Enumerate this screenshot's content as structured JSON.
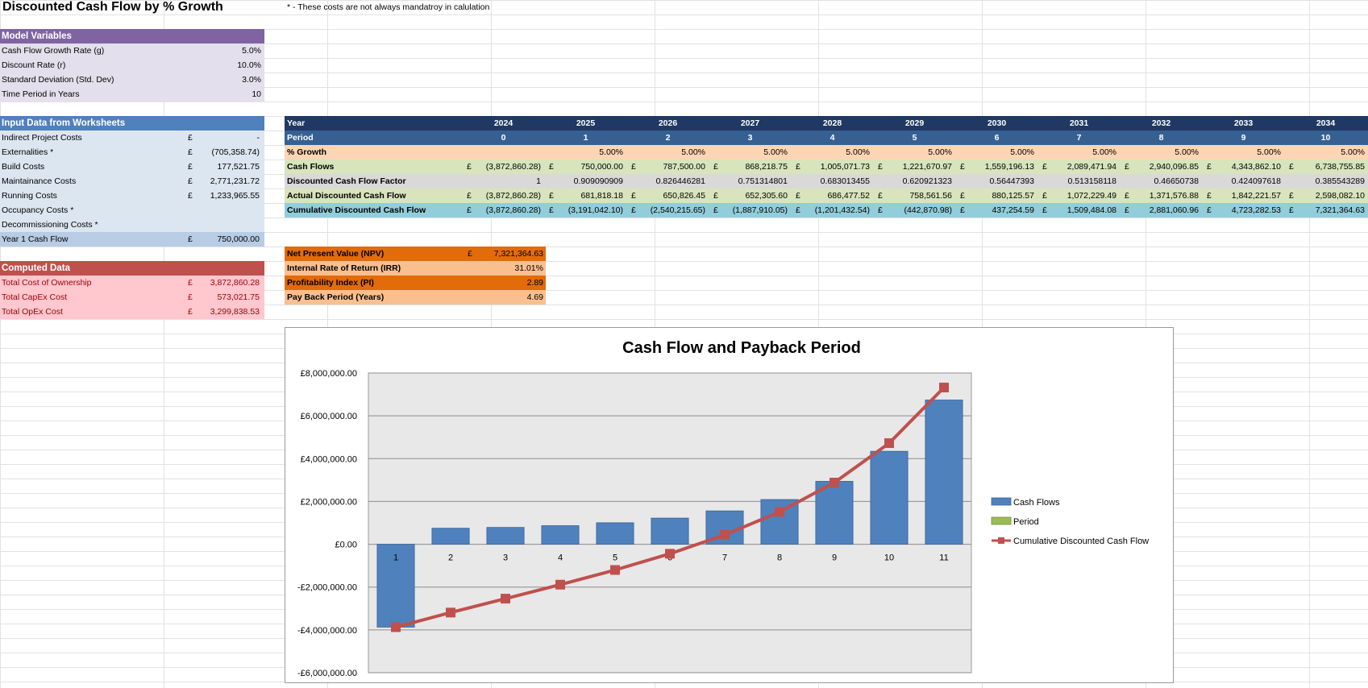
{
  "sheet": {
    "title": "Discounted Cash Flow by % Growth",
    "note": "* - These costs are not always mandatroy in calulation"
  },
  "model_variables": {
    "header": "Model Variables",
    "rows": [
      {
        "label": "Cash Flow Growth Rate (g)",
        "value": "5.0%"
      },
      {
        "label": "Discount Rate (r)",
        "value": "10.0%"
      },
      {
        "label": "Standard Deviation (Std. Dev)",
        "value": "3.0%"
      },
      {
        "label": "Time Period in Years",
        "value": "10"
      }
    ]
  },
  "input_data": {
    "header": "Input Data from Worksheets",
    "rows": [
      {
        "label": "Indirect Project Costs",
        "cur": "£",
        "value": "-"
      },
      {
        "label": "Externalities *",
        "cur": "£",
        "value": "(705,358.74)"
      },
      {
        "label": "Build Costs",
        "cur": "£",
        "value": "177,521.75"
      },
      {
        "label": "Maintainance Costs",
        "cur": "£",
        "value": "2,771,231.72"
      },
      {
        "label": "Running Costs",
        "cur": "£",
        "value": "1,233,965.55"
      },
      {
        "label": "Occupancy Costs *",
        "cur": "",
        "value": ""
      },
      {
        "label": "Decommissioning Costs *",
        "cur": "",
        "value": ""
      }
    ],
    "year1": {
      "label": "Year 1 Cash Flow",
      "cur": "£",
      "value": "750,000.00"
    }
  },
  "computed": {
    "header": "Computed Data",
    "rows": [
      {
        "label": "Total Cost of Ownership",
        "cur": "£",
        "value": "3,872,860.28"
      },
      {
        "label": "Total CapEx Cost",
        "cur": "£",
        "value": "573,021.75"
      },
      {
        "label": "Total OpEx Cost",
        "cur": "£",
        "value": "3,299,838.53"
      }
    ]
  },
  "dcf_table": {
    "year_label": "Year",
    "years": [
      "2024",
      "2025",
      "2026",
      "2027",
      "2028",
      "2029",
      "2030",
      "2031",
      "2032",
      "2033",
      "2034"
    ],
    "period_label": "Period",
    "periods": [
      "0",
      "1",
      "2",
      "3",
      "4",
      "5",
      "6",
      "7",
      "8",
      "9",
      "10"
    ],
    "growth_label": "% Growth",
    "growth": [
      "",
      "5.00%",
      "5.00%",
      "5.00%",
      "5.00%",
      "5.00%",
      "5.00%",
      "5.00%",
      "5.00%",
      "5.00%",
      "5.00%"
    ],
    "currency": "£",
    "cashflow_label": "Cash Flows",
    "cashflows": [
      "(3,872,860.28)",
      "750,000.00",
      "787,500.00",
      "868,218.75",
      "1,005,071.73",
      "1,221,670.97",
      "1,559,196.13",
      "2,089,471.94",
      "2,940,096.85",
      "4,343,862.10",
      "6,738,755.85"
    ],
    "factor_label": "Discounted Cash Flow Factor",
    "factors": [
      "1",
      "0.909090909",
      "0.826446281",
      "0.751314801",
      "0.683013455",
      "0.620921323",
      "0.56447393",
      "0.513158118",
      "0.46650738",
      "0.424097618",
      "0.385543289"
    ],
    "adcf_label": "Actual Discounted Cash Flow",
    "adcf": [
      "(3,872,860.28)",
      "681,818.18",
      "650,826.45",
      "652,305.60",
      "686,477.52",
      "758,561.56",
      "880,125.57",
      "1,072,229.49",
      "1,371,576.88",
      "1,842,221.57",
      "2,598,082.10"
    ],
    "cdcf_label": "Cumulative Discounted Cash Flow",
    "cdcf": [
      "(3,872,860.28)",
      "(3,191,042.10)",
      "(2,540,215.65)",
      "(1,887,910.05)",
      "(1,201,432.54)",
      "(442,870.98)",
      "437,254.59",
      "1,509,484.08",
      "2,881,060.96",
      "4,723,282.53",
      "7,321,364.63"
    ]
  },
  "summary": {
    "npv": {
      "label": "Net Present Value (NPV)",
      "cur": "£",
      "value": "7,321,364.63"
    },
    "irr": {
      "label": "Internal Rate of Return (IRR)",
      "value": "31.01%"
    },
    "pi": {
      "label": "Profitability Index (PI)",
      "value": "2.89"
    },
    "payback": {
      "label": "Pay Back Period (Years)",
      "value": "4.69"
    }
  },
  "colors": {
    "purple": "#8064a2",
    "purple_light": "#e4dfec",
    "blue": "#4f81bd",
    "blue_light": "#dce6f1",
    "blue_mid": "#b8cce4",
    "red": "#c0504d",
    "pink": "#ffc7ce",
    "navy": "#1f3864",
    "navy2": "#366092",
    "peach": "#fcd5b4",
    "green": "#d8e4bc",
    "grey": "#d9d9d9",
    "teal": "#92cddc",
    "orange": "#e26b0a",
    "orange_light": "#fabf8f",
    "bar": "#4f81bd",
    "line": "#c0504d",
    "period": "#9bbb59"
  },
  "chart_data": {
    "type": "bar",
    "title": "Cash Flow and Payback Period",
    "categories": [
      "1",
      "2",
      "3",
      "4",
      "5",
      "6",
      "7",
      "8",
      "9",
      "10",
      "11"
    ],
    "ylim": [
      -6000000,
      8000000
    ],
    "yticks": [
      8000000,
      6000000,
      4000000,
      2000000,
      0,
      -2000000,
      -4000000,
      -6000000
    ],
    "ytick_labels": [
      "£8,000,000.00",
      "£6,000,000.00",
      "£4,000,000.00",
      "£2,000,000.00",
      "£0.00",
      "-£2,000,000.00",
      "-£4,000,000.00",
      "-£6,000,000.00"
    ],
    "grid": true,
    "legend_position": "right",
    "series": [
      {
        "name": "Cash Flows",
        "type": "bar",
        "values": [
          -3872860.28,
          750000,
          787500,
          868218.75,
          1005071.73,
          1221670.97,
          1559196.13,
          2089471.94,
          2940096.85,
          4343862.1,
          6738755.85
        ]
      },
      {
        "name": "Period",
        "type": "bar",
        "values": [
          0,
          1,
          2,
          3,
          4,
          5,
          6,
          7,
          8,
          9,
          10
        ]
      },
      {
        "name": "Cumulative Discounted Cash Flow",
        "type": "line",
        "values": [
          -3872860.28,
          -3191042.1,
          -2540215.65,
          -1887910.05,
          -1201432.54,
          -442870.98,
          437254.59,
          1509484.08,
          2881060.96,
          4723282.53,
          7321364.63
        ]
      }
    ]
  }
}
